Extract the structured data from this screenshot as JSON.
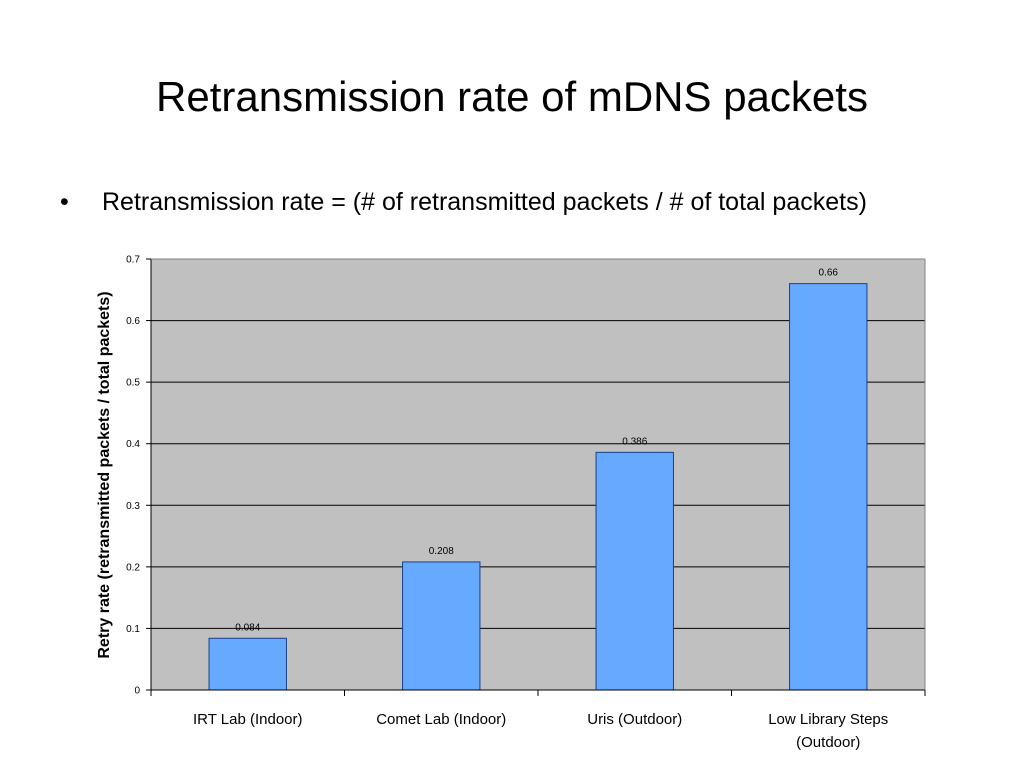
{
  "slide": {
    "title": "Retransmission rate of mDNS packets",
    "bullet_marker": "•",
    "bullet_text": "Retransmission rate = (# of retransmitted packets / # of total packets)"
  },
  "chart_data": {
    "type": "bar",
    "title": "",
    "xlabel": "",
    "ylabel": "Retry rate (retransmitted packets / total packets)",
    "categories": [
      [
        "IRT Lab (Indoor)"
      ],
      [
        "Comet Lab (Indoor)"
      ],
      [
        "Uris (Outdoor)"
      ],
      [
        "Low Library Steps",
        "(Outdoor)"
      ]
    ],
    "values": [
      0.084,
      0.208,
      0.386,
      0.66
    ],
    "data_labels": [
      "0.084",
      "0.208",
      "0.386",
      "0.66"
    ],
    "ylim": [
      0,
      0.7
    ],
    "yticks": [
      0,
      0.1,
      0.2,
      0.3,
      0.4,
      0.5,
      0.6,
      0.7
    ],
    "ytick_labels": [
      "0",
      "0.1",
      "0.2",
      "0.3",
      "0.4",
      "0.5",
      "0.6",
      "0.7"
    ],
    "grid": true,
    "legend": "none",
    "colors": {
      "bar_fill": "#66aaff",
      "bar_stroke": "#1a3f8a",
      "plot_background": "#c0c0c0",
      "gridline": "#000000"
    }
  }
}
